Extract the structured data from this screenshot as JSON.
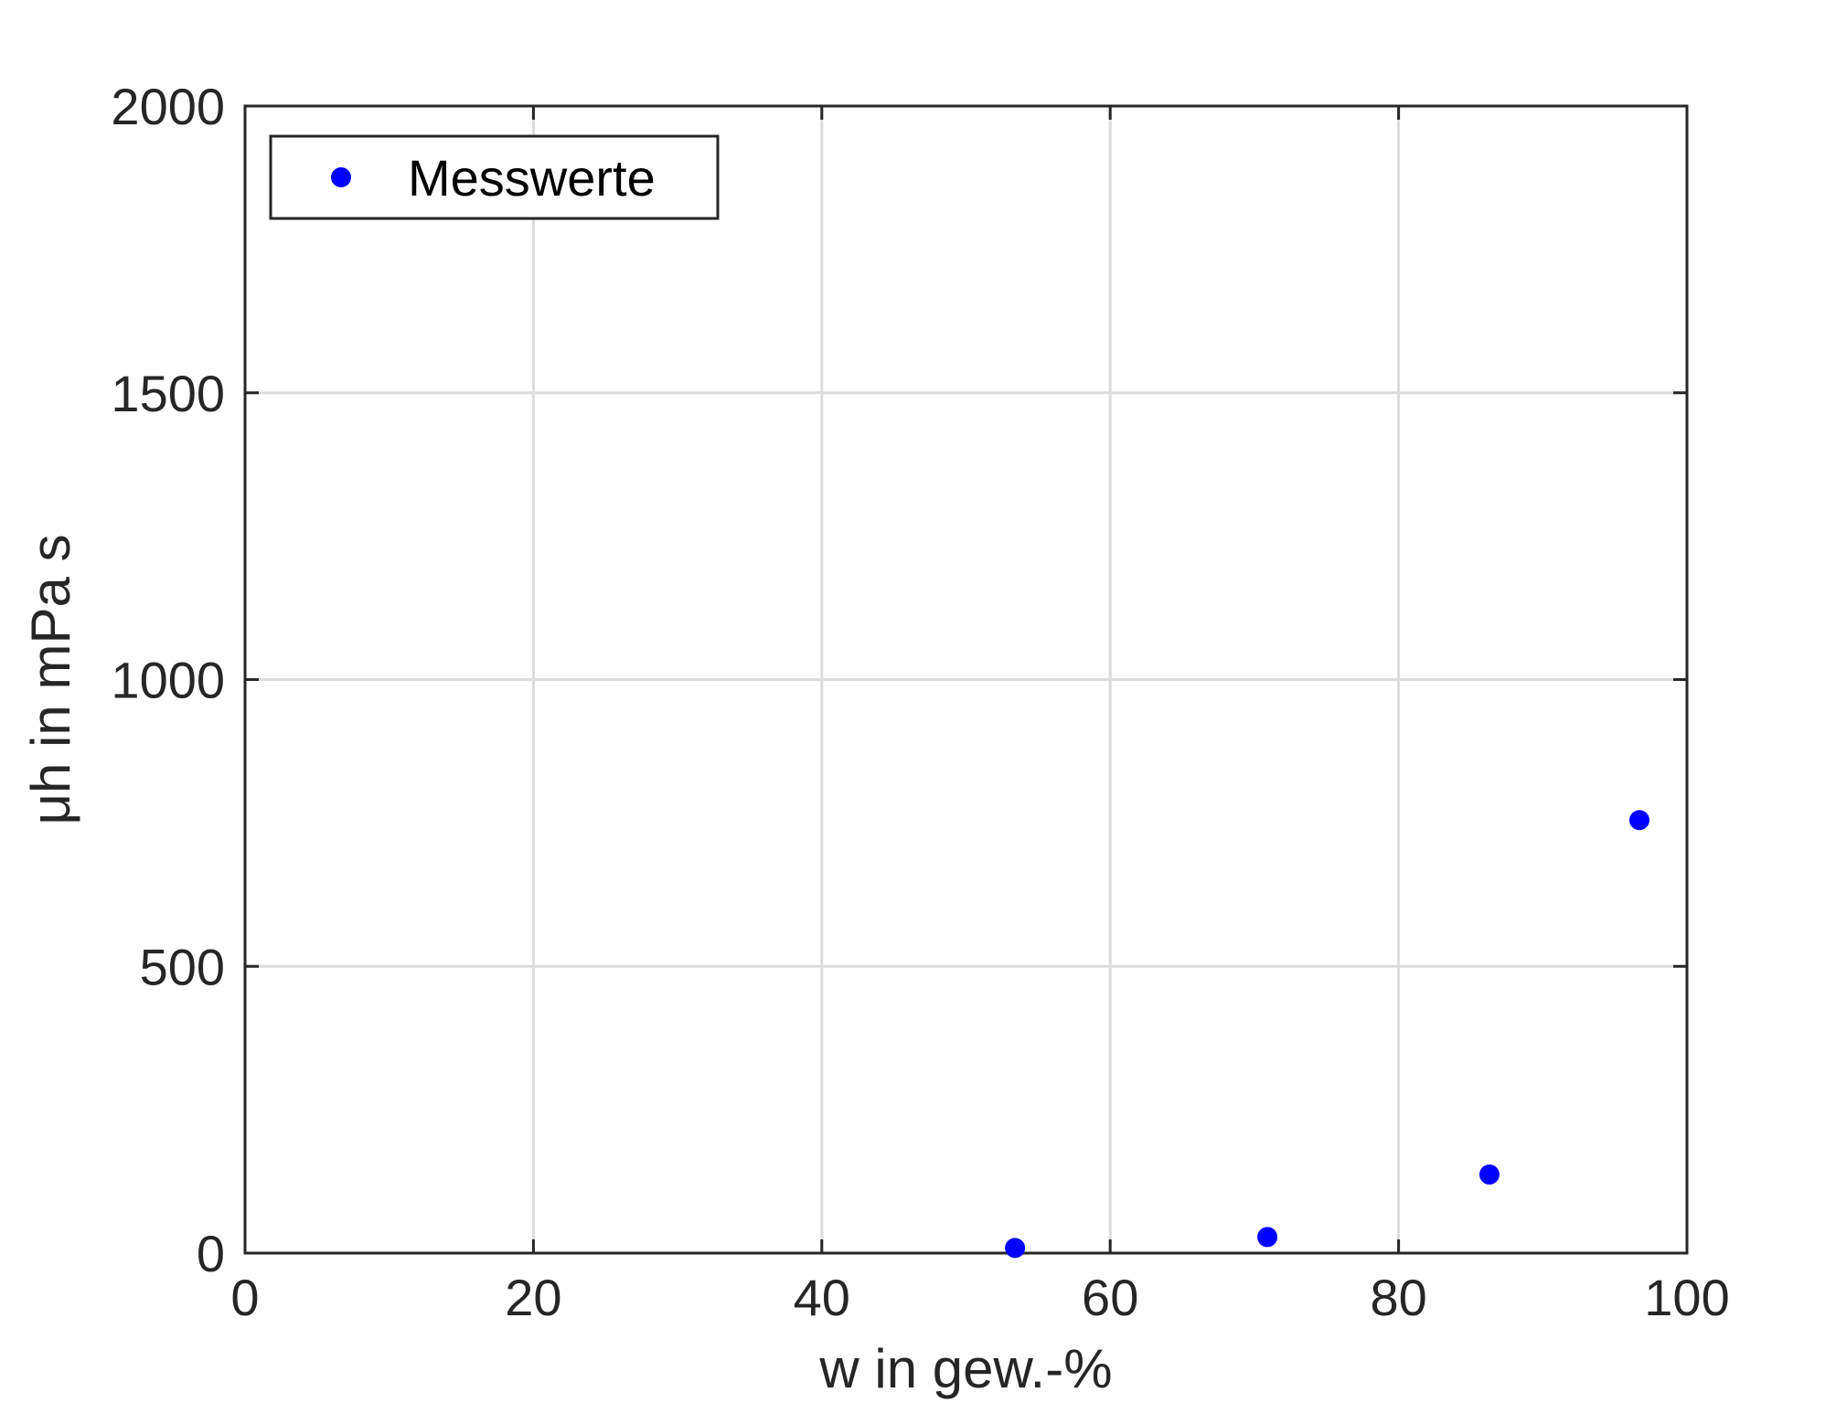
{
  "chart_data": {
    "type": "scatter",
    "title": "",
    "xlabel": "w in gew.-%",
    "ylabel": "μh in mPa s",
    "xlim": [
      0,
      100
    ],
    "ylim": [
      0,
      2000
    ],
    "xticks": [
      "0",
      "20",
      "40",
      "60",
      "80",
      "100"
    ],
    "yticks": [
      "0",
      "500",
      "1000",
      "1500",
      "2000"
    ],
    "grid": true,
    "legend_position": "top-left",
    "series": [
      {
        "name": "Messwerte",
        "color": "#0000ff",
        "x": [
          53.4,
          70.9,
          86.3,
          96.7
        ],
        "y": [
          9,
          28,
          137,
          755
        ]
      }
    ]
  }
}
